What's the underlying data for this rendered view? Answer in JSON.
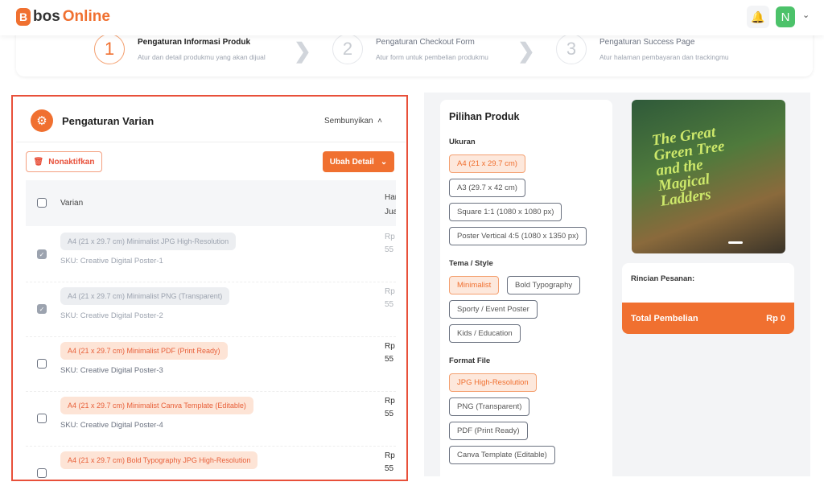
{
  "header": {
    "logo_mark": "B",
    "logo_bos": "bos",
    "logo_online": "Online",
    "avatar": "N",
    "accent": "#f07030"
  },
  "steps": [
    {
      "num": "1",
      "title": "Pengaturan Informasi Produk",
      "sub": "Atur dan detail produkmu yang akan dijual",
      "active": true
    },
    {
      "num": "2",
      "title": "Pengaturan Checkout Form",
      "sub": "Atur form untuk pembelian produkmu",
      "active": false
    },
    {
      "num": "3",
      "title": "Pengaturan Success Page",
      "sub": "Atur halaman pembayaran dan trackingmu",
      "active": false
    }
  ],
  "variant": {
    "title": "Pengaturan Varian",
    "hide": "Sembunyikan",
    "disable_btn": "Nonaktifkan",
    "edit_btn": "Ubah Detail",
    "col_varian": "Varian",
    "col_price_1": "Harga",
    "col_price_2": "Jual",
    "rows": [
      {
        "name": "A4 (21 x 29.7 cm) Minimalist JPG High-Resolution",
        "sku": "SKU: Creative Digital Poster-1",
        "p1": "Rp",
        "p2": "55",
        "disabled": true
      },
      {
        "name": "A4 (21 x 29.7 cm) Minimalist PNG (Transparent)",
        "sku": "SKU: Creative Digital Poster-2",
        "p1": "Rp",
        "p2": "55",
        "disabled": true
      },
      {
        "name": "A4 (21 x 29.7 cm) Minimalist PDF (Print Ready)",
        "sku": "SKU: Creative Digital Poster-3",
        "p1": "Rp",
        "p2": "55",
        "disabled": false
      },
      {
        "name": "A4 (21 x 29.7 cm) Minimalist Canva Template (Editable)",
        "sku": "SKU: Creative Digital Poster-4",
        "p1": "Rp",
        "p2": "55",
        "disabled": false
      },
      {
        "name": "A4 (21 x 29.7 cm) Bold Typography JPG High-Resolution",
        "sku": "",
        "p1": "Rp",
        "p2": "55",
        "disabled": false
      }
    ]
  },
  "options": {
    "title": "Pilihan Produk",
    "groups": [
      {
        "label": "Ukuran",
        "items": [
          "A4 (21 x 29.7 cm)",
          "A3 (29.7 x 42 cm)",
          "Square 1:1 (1080 x 1080 px)",
          "Poster Vertical 4:5 (1080 x 1350 px)"
        ],
        "selected": 0
      },
      {
        "label": "Tema / Style",
        "items": [
          "Minimalist",
          "Bold Typography",
          "Sporty / Event Poster",
          "Kids / Education"
        ],
        "selected": 0
      },
      {
        "label": "Format File",
        "items": [
          "JPG High-Resolution",
          "PNG (Transparent)",
          "PDF (Print Ready)",
          "Canva Template (Editable)"
        ],
        "selected": 0
      }
    ]
  },
  "preview": {
    "book_title": "The Great Green Tree and the Magical Ladders"
  },
  "order": {
    "title": "Rincian Pesanan:",
    "total_label": "Total Pembelian",
    "total_value": "Rp 0"
  }
}
